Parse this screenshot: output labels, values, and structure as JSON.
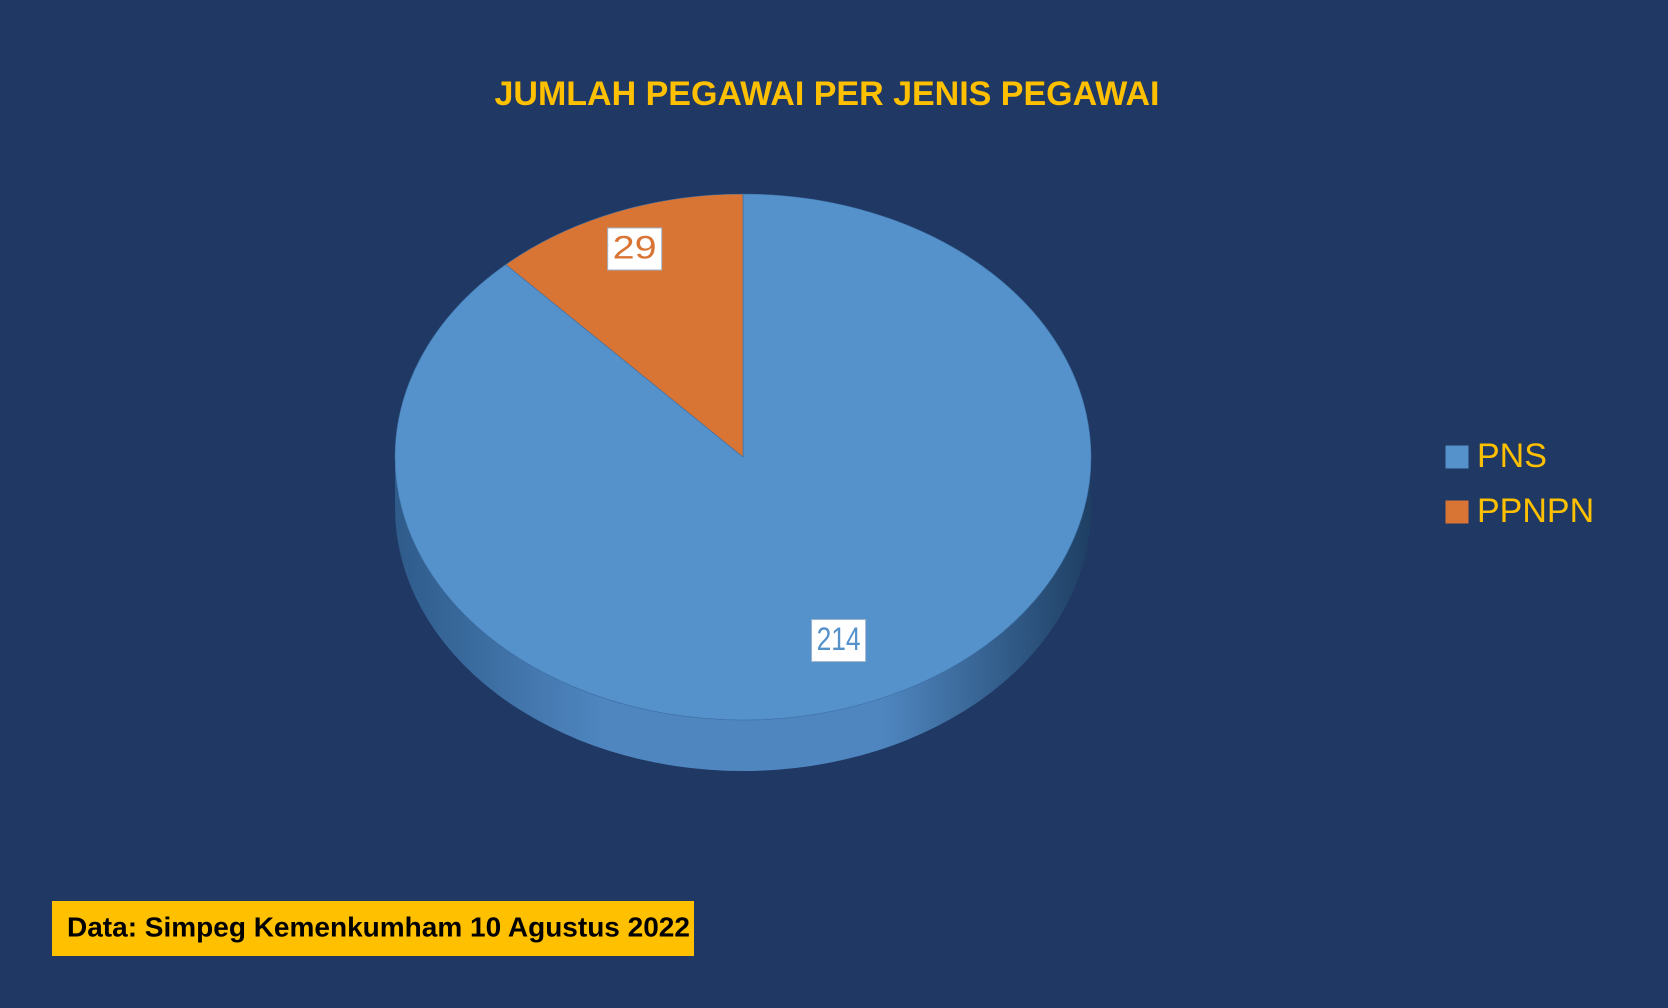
{
  "chart_data": {
    "type": "pie",
    "title": "JUMLAH PEGAWAI PER JENIS PEGAWAI",
    "categories": [
      "PNS",
      "PPNPN"
    ],
    "values": [
      214,
      29
    ],
    "colors": [
      "#5591cb",
      "#d87434"
    ],
    "legend": "right",
    "note": "Data: Simpeg Kemenkumham 10 Agustus 2022"
  }
}
